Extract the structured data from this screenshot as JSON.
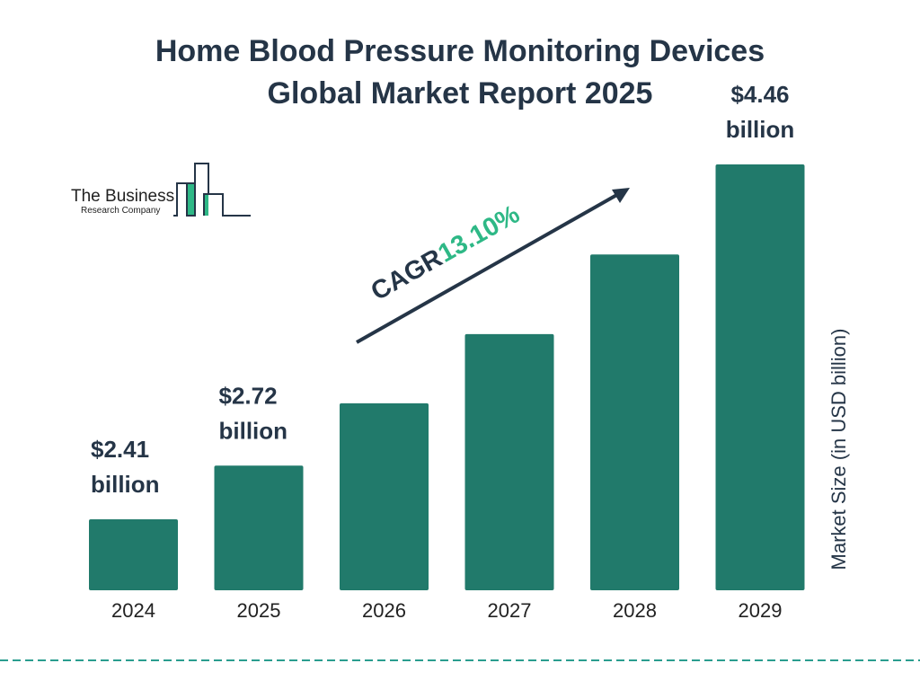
{
  "title_line1": "Home Blood Pressure Monitoring Devices",
  "title_line2": "Global Market Report 2025",
  "logo": {
    "line1": "The Business",
    "line2": "Research Company"
  },
  "cagr": {
    "label": "CAGR",
    "value": "13.10%"
  },
  "colors": {
    "bar": "#217A6B",
    "text": "#253547",
    "accent": "#2EB886",
    "divider": "#2A9D8F"
  },
  "chart_data": {
    "type": "bar",
    "categories": [
      "2024",
      "2025",
      "2026",
      "2027",
      "2028",
      "2029"
    ],
    "values": [
      2.41,
      2.72,
      3.08,
      3.48,
      3.94,
      4.46
    ],
    "data_labels": [
      {
        "index": 0,
        "line1": "$2.41",
        "line2": "billion"
      },
      {
        "index": 1,
        "line1": "$2.72",
        "line2": "billion"
      },
      {
        "index": 5,
        "line1": "$4.46",
        "line2": "billion"
      }
    ],
    "ylabel": "Market Size (in USD billion)",
    "xlabel": "",
    "ylim": [
      2.0,
      4.6
    ],
    "grid": false
  }
}
